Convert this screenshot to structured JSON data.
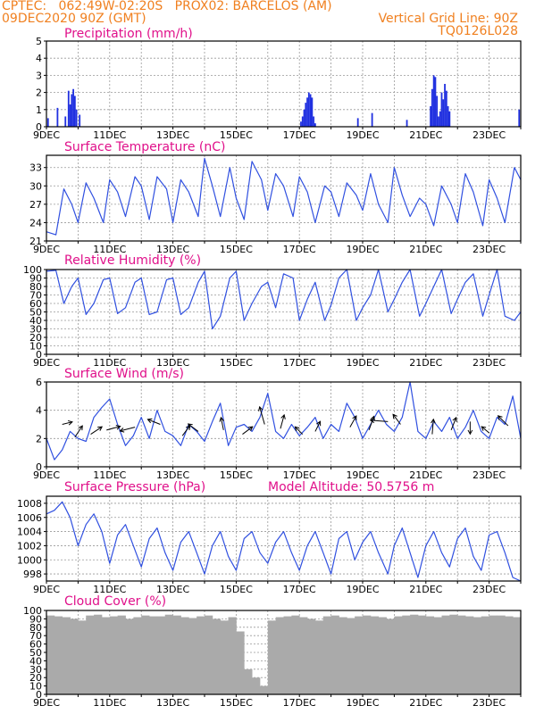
{
  "header": {
    "line1_left": "CPTEC:   062:49W-02:20S   PROX02: BARCELOS (AM)",
    "line2_left": "09DEC2020 90Z (GMT)",
    "line2_right": "Vertical Grid Line: 90Z",
    "line3_right": "TQ0126L028"
  },
  "colors": {
    "header": "#f08020",
    "title": "#e0108a",
    "line": "#3050e0",
    "bar": "#2030e0",
    "cloud": "#aaaaaa"
  },
  "chart_data": [
    {
      "type": "bar",
      "title": "Precipitation (mm/h)",
      "xlabels": [
        "9DEC",
        "11DEC",
        "13DEC",
        "15DEC",
        "17DEC",
        "19DEC",
        "21DEC",
        "23DEC"
      ],
      "ylim": [
        0,
        5
      ],
      "yticks": [
        0,
        1,
        2,
        3,
        4,
        5
      ],
      "x_unit": "day offset from 09DEC",
      "x": [
        0.05,
        0.35,
        0.6,
        0.7,
        0.75,
        0.8,
        0.85,
        0.9,
        0.95,
        1.05,
        8.05,
        8.1,
        8.15,
        8.2,
        8.25,
        8.3,
        8.35,
        8.4,
        8.45,
        8.5,
        9.85,
        10.3,
        11.4,
        12.15,
        12.2,
        12.25,
        12.3,
        12.35,
        12.4,
        12.45,
        12.5,
        12.55,
        12.6,
        12.65,
        12.7,
        12.75,
        14.95
      ],
      "values": [
        0.5,
        1.1,
        0.6,
        2.1,
        1.3,
        1.9,
        2.2,
        1.8,
        1.0,
        0.7,
        0.3,
        0.6,
        1.0,
        1.4,
        1.7,
        2.0,
        1.9,
        1.7,
        0.6,
        0.2,
        0.5,
        0.8,
        0.4,
        1.2,
        2.2,
        3.0,
        2.9,
        1.8,
        0.6,
        0.9,
        2.0,
        1.6,
        2.5,
        2.1,
        1.2,
        0.9,
        1.0
      ]
    },
    {
      "type": "line",
      "title": "Surface Temperature (nC)",
      "xlabels": [
        "9DEC",
        "11DEC",
        "13DEC",
        "15DEC",
        "17DEC",
        "19DEC",
        "21DEC",
        "23DEC"
      ],
      "ylim": [
        21,
        35
      ],
      "yticks": [
        21,
        24,
        27,
        30,
        33
      ],
      "x": [
        0,
        0.3,
        0.55,
        0.8,
        1.0,
        1.25,
        1.5,
        1.8,
        2.0,
        2.25,
        2.5,
        2.8,
        3.0,
        3.25,
        3.5,
        3.8,
        4.0,
        4.25,
        4.5,
        4.8,
        5.0,
        5.25,
        5.5,
        5.8,
        6.0,
        6.25,
        6.5,
        6.8,
        7.0,
        7.25,
        7.5,
        7.8,
        8.0,
        8.25,
        8.5,
        8.8,
        9.0,
        9.25,
        9.5,
        9.8,
        10.0,
        10.25,
        10.5,
        10.8,
        11.0,
        11.25,
        11.5,
        11.8,
        12.0,
        12.25,
        12.5,
        12.8,
        13.0,
        13.25,
        13.5,
        13.8,
        14.0,
        14.25,
        14.5,
        14.8,
        15.0
      ],
      "values": [
        22.5,
        22,
        29.5,
        27,
        24,
        30.5,
        28,
        24,
        31,
        29,
        25,
        31.5,
        30,
        24.5,
        31.5,
        29.5,
        24,
        31,
        29,
        25,
        34.5,
        30,
        25,
        33,
        28,
        24.5,
        34,
        31,
        26,
        32,
        30,
        25,
        31.5,
        29,
        24,
        30,
        29,
        25,
        30.5,
        28.5,
        26,
        32,
        27,
        24,
        33,
        28.5,
        25,
        28,
        27,
        23.5,
        30,
        27,
        24,
        32,
        29,
        23.5,
        31,
        28,
        24,
        33,
        31
      ]
    },
    {
      "type": "line",
      "title": "Relative Humidity (%)",
      "xlabels": [
        "9DEC",
        "11DEC",
        "13DEC",
        "15DEC",
        "17DEC",
        "19DEC",
        "21DEC",
        "23DEC"
      ],
      "ylim": [
        0,
        100
      ],
      "yticks": [
        0,
        10,
        20,
        30,
        40,
        50,
        60,
        70,
        80,
        90,
        100
      ],
      "x": [
        0,
        0.3,
        0.55,
        0.8,
        1.0,
        1.25,
        1.5,
        1.8,
        2.0,
        2.25,
        2.5,
        2.8,
        3.0,
        3.25,
        3.5,
        3.8,
        4.0,
        4.25,
        4.5,
        4.8,
        5.0,
        5.25,
        5.5,
        5.8,
        6.0,
        6.25,
        6.5,
        6.8,
        7.0,
        7.25,
        7.5,
        7.8,
        8.0,
        8.25,
        8.5,
        8.8,
        9.0,
        9.25,
        9.5,
        9.8,
        10.0,
        10.25,
        10.5,
        10.8,
        11.0,
        11.25,
        11.5,
        11.8,
        12.0,
        12.25,
        12.5,
        12.8,
        13.0,
        13.25,
        13.5,
        13.8,
        14.0,
        14.25,
        14.5,
        14.8,
        15.0
      ],
      "values": [
        98,
        99,
        60,
        80,
        90,
        47,
        60,
        88,
        90,
        48,
        55,
        85,
        90,
        47,
        50,
        88,
        90,
        47,
        55,
        85,
        98,
        30,
        45,
        90,
        98,
        40,
        60,
        80,
        85,
        55,
        95,
        90,
        40,
        65,
        85,
        40,
        58,
        90,
        100,
        40,
        55,
        70,
        100,
        50,
        65,
        85,
        100,
        45,
        60,
        80,
        100,
        48,
        65,
        85,
        95,
        45,
        70,
        100,
        45,
        40,
        50
      ]
    },
    {
      "type": "line",
      "title": "Surface Wind (m/s)",
      "xlabels": [
        "9DEC",
        "11DEC",
        "13DEC",
        "15DEC",
        "17DEC",
        "19DEC",
        "21DEC",
        "23DEC"
      ],
      "ylim": [
        0,
        6
      ],
      "yticks": [
        0,
        2,
        4,
        6
      ],
      "x": [
        0,
        0.25,
        0.5,
        0.75,
        1.0,
        1.25,
        1.5,
        1.75,
        2.0,
        2.25,
        2.5,
        2.75,
        3.0,
        3.25,
        3.5,
        3.75,
        4.0,
        4.25,
        4.5,
        4.75,
        5.0,
        5.25,
        5.5,
        5.75,
        6.0,
        6.25,
        6.5,
        6.75,
        7.0,
        7.25,
        7.5,
        7.75,
        8.0,
        8.25,
        8.5,
        8.75,
        9.0,
        9.25,
        9.5,
        9.75,
        10.0,
        10.25,
        10.5,
        10.75,
        11.0,
        11.25,
        11.5,
        11.75,
        12.0,
        12.25,
        12.5,
        12.75,
        13.0,
        13.25,
        13.5,
        13.75,
        14.0,
        14.25,
        14.5,
        14.75,
        15.0
      ],
      "values": [
        2.0,
        0.5,
        1.2,
        2.5,
        2.0,
        1.8,
        3.5,
        4.2,
        4.8,
        3.0,
        1.5,
        2.2,
        3.5,
        2.0,
        4.0,
        2.5,
        2.2,
        1.5,
        3.0,
        2.5,
        1.8,
        3.2,
        4.5,
        1.5,
        2.8,
        3.0,
        2.5,
        3.5,
        5.2,
        2.5,
        2.0,
        3.0,
        2.2,
        2.8,
        3.5,
        2.0,
        3.0,
        2.5,
        4.5,
        3.5,
        2.0,
        3.0,
        4.0,
        3.0,
        2.5,
        3.5,
        6.0,
        2.5,
        2.0,
        3.2,
        2.5,
        3.5,
        2.0,
        2.8,
        4.0,
        2.5,
        2.0,
        3.5,
        3.0,
        5.0,
        2.0
      ],
      "arrows": [
        {
          "x": 0.5,
          "y": 3.0,
          "u": 0.8,
          "v": 0.2
        },
        {
          "x": 0.9,
          "y": 2.1,
          "u": 0.6,
          "v": 0.9
        },
        {
          "x": 1.4,
          "y": 2.3,
          "u": 0.9,
          "v": 0.6
        },
        {
          "x": 1.9,
          "y": 2.6,
          "u": 1.1,
          "v": 0.3
        },
        {
          "x": 2.8,
          "y": 2.8,
          "u": -1.2,
          "v": -0.3
        },
        {
          "x": 3.6,
          "y": 3.0,
          "u": -1.0,
          "v": 0.4
        },
        {
          "x": 4.3,
          "y": 2.2,
          "u": 0.6,
          "v": 0.8
        },
        {
          "x": 4.8,
          "y": 2.5,
          "u": -0.8,
          "v": 0.6
        },
        {
          "x": 5.6,
          "y": 2.6,
          "u": -0.2,
          "v": 1.0
        },
        {
          "x": 6.2,
          "y": 2.3,
          "u": 0.8,
          "v": 0.6
        },
        {
          "x": 6.9,
          "y": 3.0,
          "u": -0.4,
          "v": 1.4
        },
        {
          "x": 7.4,
          "y": 2.7,
          "u": 0.3,
          "v": 1.1
        },
        {
          "x": 8.1,
          "y": 2.3,
          "u": -0.6,
          "v": 0.6
        },
        {
          "x": 8.5,
          "y": 2.5,
          "u": 0.4,
          "v": 0.8
        },
        {
          "x": 9.6,
          "y": 2.8,
          "u": 0.5,
          "v": 0.9
        },
        {
          "x": 10.2,
          "y": 2.6,
          "u": 0.4,
          "v": 1.1
        },
        {
          "x": 10.8,
          "y": 3.2,
          "u": -1.4,
          "v": 0.1
        },
        {
          "x": 11.2,
          "y": 3.0,
          "u": -0.6,
          "v": 0.8
        },
        {
          "x": 12.2,
          "y": 2.3,
          "u": 0.1,
          "v": 1.2
        },
        {
          "x": 12.8,
          "y": 2.6,
          "u": 0.4,
          "v": 1.0
        },
        {
          "x": 13.4,
          "y": 3.2,
          "u": 0.0,
          "v": -1.0
        },
        {
          "x": 14.0,
          "y": 2.4,
          "u": -0.6,
          "v": 0.5
        },
        {
          "x": 14.6,
          "y": 2.9,
          "u": -0.8,
          "v": 0.8
        }
      ]
    },
    {
      "type": "line",
      "title": "Surface Pressure (hPa)",
      "annotation": "Model Altitude: 50.5756 m",
      "xlabels": [
        "9DEC",
        "11DEC",
        "13DEC",
        "15DEC",
        "17DEC",
        "19DEC",
        "21DEC",
        "23DEC"
      ],
      "ylim": [
        997,
        1009
      ],
      "yticks": [
        998,
        1000,
        1002,
        1004,
        1006,
        1008
      ],
      "x": [
        0,
        0.25,
        0.5,
        0.75,
        1.0,
        1.25,
        1.5,
        1.75,
        2.0,
        2.25,
        2.5,
        2.75,
        3.0,
        3.25,
        3.5,
        3.75,
        4.0,
        4.25,
        4.5,
        4.75,
        5.0,
        5.25,
        5.5,
        5.75,
        6.0,
        6.25,
        6.5,
        6.75,
        7.0,
        7.25,
        7.5,
        7.75,
        8.0,
        8.25,
        8.5,
        8.75,
        9.0,
        9.25,
        9.5,
        9.75,
        10.0,
        10.25,
        10.5,
        10.8,
        11.0,
        11.25,
        11.5,
        11.75,
        12.0,
        12.25,
        12.5,
        12.75,
        13.0,
        13.25,
        13.5,
        13.75,
        14.0,
        14.25,
        14.5,
        14.75,
        15.0
      ],
      "values": [
        1006.5,
        1007,
        1008.2,
        1006,
        1002,
        1005,
        1006.5,
        1004,
        999.5,
        1003.5,
        1005,
        1002,
        999,
        1003,
        1004.5,
        1001,
        998.5,
        1002.5,
        1004,
        1001,
        998,
        1002,
        1004,
        1000.5,
        998.5,
        1003,
        1004,
        1001,
        999.5,
        1002.5,
        1004,
        1001,
        998.5,
        1002,
        1004,
        1001,
        998,
        1003,
        1004,
        1000,
        1002.5,
        1004,
        1001,
        998,
        1002,
        1004.5,
        1001,
        997.5,
        1002,
        1004,
        1001,
        999,
        1003,
        1004.5,
        1000.5,
        998.5,
        1003.5,
        1004,
        1001,
        997.5,
        997
      ]
    },
    {
      "type": "bar",
      "title": "Cloud Cover (%)",
      "xlabels": [
        "9DEC",
        "11DEC",
        "13DEC",
        "15DEC",
        "17DEC",
        "19DEC",
        "21DEC",
        "23DEC"
      ],
      "ylim": [
        0,
        100
      ],
      "yticks": [
        0,
        10,
        20,
        30,
        40,
        50,
        60,
        70,
        80,
        90,
        100
      ],
      "x": [
        0,
        0.25,
        0.5,
        0.75,
        1.0,
        1.25,
        1.5,
        1.75,
        2.0,
        2.25,
        2.5,
        2.75,
        3.0,
        3.25,
        3.5,
        3.75,
        4.0,
        4.25,
        4.5,
        4.75,
        5.0,
        5.25,
        5.5,
        5.75,
        6.0,
        6.25,
        6.5,
        6.75,
        7.0,
        7.25,
        7.5,
        7.75,
        8.0,
        8.25,
        8.5,
        8.75,
        9.0,
        9.25,
        9.5,
        9.75,
        10.0,
        10.25,
        10.5,
        10.75,
        11.0,
        11.25,
        11.5,
        11.75,
        12.0,
        12.25,
        12.5,
        12.75,
        13.0,
        13.25,
        13.5,
        13.75,
        14.0,
        14.25,
        14.5,
        14.75
      ],
      "values": [
        94,
        93,
        92,
        90,
        88,
        94,
        95,
        92,
        93,
        94,
        90,
        92,
        94,
        93,
        93,
        95,
        94,
        92,
        91,
        93,
        94,
        90,
        88,
        92,
        75,
        30,
        20,
        10,
        88,
        92,
        93,
        94,
        92,
        90,
        88,
        93,
        94,
        92,
        91,
        93,
        94,
        93,
        92,
        90,
        93,
        94,
        95,
        94,
        93,
        92,
        94,
        95,
        94,
        93,
        92,
        93,
        94,
        94,
        93,
        92
      ]
    }
  ]
}
